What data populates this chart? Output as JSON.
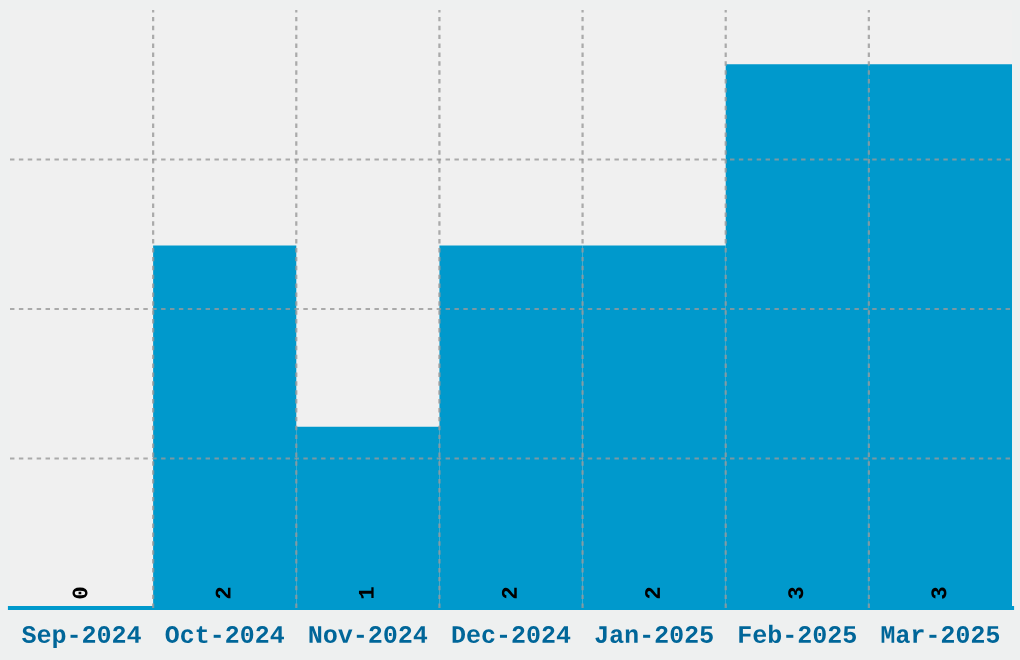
{
  "chart_data": {
    "type": "bar",
    "categories": [
      "Sep-2024",
      "Oct-2024",
      "Nov-2024",
      "Dec-2024",
      "Jan-2025",
      "Feb-2025",
      "Mar-2025"
    ],
    "values": [
      0,
      2,
      1,
      2,
      2,
      3,
      3
    ],
    "color": "#0099cc",
    "data_labels": true,
    "grid": true,
    "tick_labels": "x",
    "ylim": [
      0,
      3.3
    ],
    "yticks": [
      {
        "value": 0.825,
        "label": null
      },
      {
        "value": 1.65,
        "label": null
      },
      {
        "value": 2.475,
        "label": null
      }
    ]
  }
}
